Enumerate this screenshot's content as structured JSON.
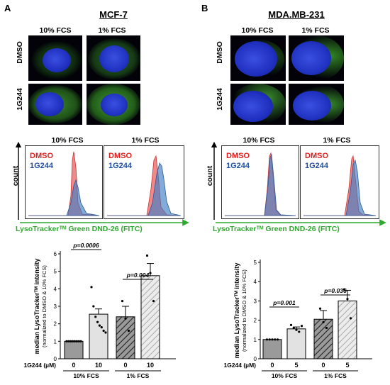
{
  "panelA": {
    "letter": "A",
    "cell_line": "MCF-7",
    "col_10": "10% FCS",
    "col_1": "1% FCS",
    "row_dmso": "DMSO",
    "row_1g244": "1G244",
    "flow_title_10": "10% FCS",
    "flow_title_1": "1% FCS"
  },
  "panelB": {
    "letter": "B",
    "cell_line": "MDA.MB-231",
    "col_10": "10% FCS",
    "col_1": "1% FCS",
    "row_dmso": "DMSO",
    "row_1g244": "1G244",
    "flow_title_10": "10% FCS",
    "flow_title_1": "1% FCS"
  },
  "flow": {
    "legend_dmso": "DMSO",
    "legend_1g244": "1G244",
    "count_label": "count",
    "x_label": "LysoTrackerᵀᴹ Green DND-26 (FITC)",
    "colors": {
      "dmso": "#e84a4a",
      "g1244": "#3f7ec4",
      "axis": "#2ea82e"
    }
  },
  "chart_data": [
    {
      "type": "bar",
      "panel": "A",
      "ylabel": "median LysoTrackerᵀᴹ intensity",
      "ylabel_sub": "(normalized to DMSO & 10% FCS)",
      "ylim": [
        0,
        6
      ],
      "yticks": [
        0,
        1,
        2,
        3,
        4,
        5,
        6
      ],
      "x_row_label": "1G244 (µM)",
      "categories": [
        "0",
        "10",
        "0",
        "10"
      ],
      "group_labels": [
        "10% FCS",
        "1% FCS"
      ],
      "values": [
        1.0,
        2.55,
        2.4,
        4.75
      ],
      "errors": [
        0.0,
        0.3,
        0.6,
        0.7
      ],
      "fills": [
        "solid-gray",
        "light-gray",
        "hatch-dark",
        "hatch-light"
      ],
      "points": [
        [
          1,
          1,
          1,
          1,
          1,
          1,
          1,
          1
        ],
        [
          4.1,
          3.0,
          2.4,
          2.1,
          1.9,
          1.8,
          1.6,
          1.5
        ],
        [
          3.3,
          2.3,
          1.6
        ],
        [
          5.9,
          4.9,
          3.3
        ]
      ],
      "pvalues": [
        {
          "text": "p=0.0006",
          "between": [
            0,
            1
          ]
        },
        {
          "text": "p=0.004",
          "between": [
            2,
            3
          ]
        }
      ]
    },
    {
      "type": "bar",
      "panel": "B",
      "ylabel": "median LysoTrackerᵀᴹ intensity",
      "ylabel_sub": "(normalized to DMSO & 10% FCS)",
      "ylim": [
        0,
        5
      ],
      "yticks": [
        0,
        1,
        2,
        3,
        4,
        5
      ],
      "x_row_label": "1G244 (µM)",
      "categories": [
        "0",
        "5",
        "0",
        "5"
      ],
      "group_labels": [
        "10% FCS",
        "1% FCS"
      ],
      "values": [
        1.0,
        1.55,
        2.05,
        3.0
      ],
      "errors": [
        0.0,
        0.1,
        0.45,
        0.55
      ],
      "fills": [
        "solid-gray",
        "light-gray",
        "hatch-dark",
        "hatch-light"
      ],
      "points": [
        [
          1,
          1,
          1,
          1,
          1
        ],
        [
          1.75,
          1.6,
          1.5,
          1.4,
          1.7
        ],
        [
          2.6,
          1.9,
          1.6
        ],
        [
          3.6,
          3.1,
          2.1
        ]
      ],
      "pvalues": [
        {
          "text": "p=0.001",
          "between": [
            0,
            1
          ]
        },
        {
          "text": "p=0.036",
          "between": [
            2,
            3
          ]
        }
      ]
    }
  ]
}
